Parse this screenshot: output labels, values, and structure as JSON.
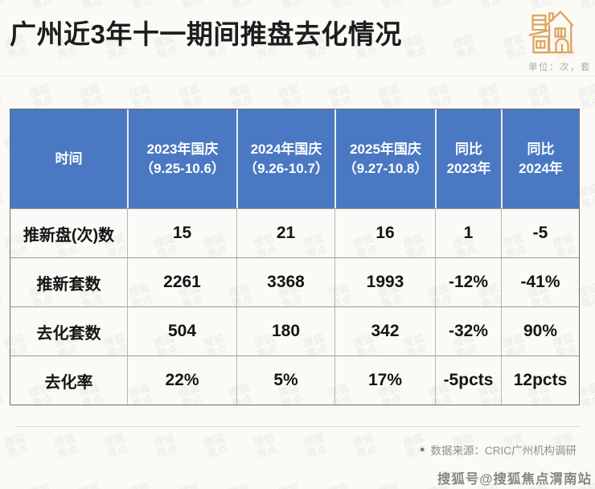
{
  "page": {
    "title": "广州近3年十一期间推盘去化情况",
    "unit_note": "单位：次，套"
  },
  "colors": {
    "header_blue": "#4a78c2",
    "icon_orange": "#dda35f"
  },
  "table": {
    "header": [
      {
        "line1": "时间",
        "line2": ""
      },
      {
        "line1": "2023年国庆",
        "line2": "（9.25-10.6）"
      },
      {
        "line1": "2024年国庆",
        "line2": "（9.26-10.7）"
      },
      {
        "line1": "2025年国庆",
        "line2": "（9.27-10.8）"
      },
      {
        "line1": "同比",
        "line2": "2023年"
      },
      {
        "line1": "同比",
        "line2": "2024年"
      }
    ],
    "rows": [
      {
        "label": "推新盘(次)数",
        "v": [
          "15",
          "21",
          "16",
          "1",
          "-5"
        ]
      },
      {
        "label": "推新套数",
        "v": [
          "2261",
          "3368",
          "1993",
          "-12%",
          "-41%"
        ]
      },
      {
        "label": "去化套数",
        "v": [
          "504",
          "180",
          "342",
          "-32%",
          "90%"
        ]
      },
      {
        "label": "去化率",
        "v": [
          "22%",
          "5%",
          "17%",
          "-5pcts",
          "12pcts"
        ]
      }
    ]
  },
  "footer": {
    "bullet": "●",
    "source": "数据来源：CRIC广州机构调研",
    "account": "搜狐号@搜狐焦点渭南站"
  },
  "watermark": {
    "glyph": "搜狐焦点",
    "cols": 13,
    "rows": 11,
    "step": 62
  },
  "chart_data": {
    "type": "table",
    "title": "广州近3年十一期间推盘去化情况",
    "unit": "单位：次，套",
    "columns": [
      "时间",
      "2023年国庆（9.25-10.6）",
      "2024年国庆（9.26-10.7）",
      "2025年国庆（9.27-10.8）",
      "同比2023年",
      "同比2024年"
    ],
    "rows": [
      [
        "推新盘(次)数",
        "15",
        "21",
        "16",
        "1",
        "-5"
      ],
      [
        "推新套数",
        "2261",
        "3368",
        "1993",
        "-12%",
        "-41%"
      ],
      [
        "去化套数",
        "504",
        "180",
        "342",
        "-32%",
        "90%"
      ],
      [
        "去化率",
        "22%",
        "5%",
        "17%",
        "-5pcts",
        "12pcts"
      ]
    ],
    "source": "数据来源：CRIC广州机构调研"
  }
}
